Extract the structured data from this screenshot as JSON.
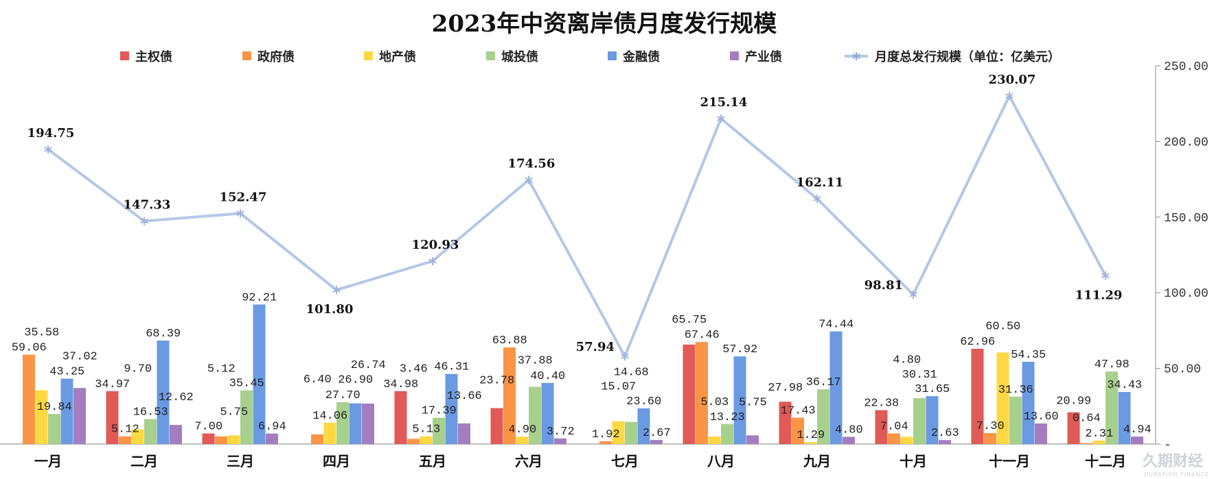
{
  "chart_data": {
    "type": "bar+line",
    "title": "2023年中资离岸债月度发行规模",
    "categories": [
      "一月",
      "二月",
      "三月",
      "四月",
      "五月",
      "六月",
      "七月",
      "八月",
      "九月",
      "十月",
      "十一月",
      "十二月"
    ],
    "series": [
      {
        "name": "主权债",
        "type": "bar",
        "color": "#E05A56",
        "values": [
          null,
          34.97,
          7.0,
          null,
          34.98,
          23.78,
          null,
          65.75,
          27.98,
          22.38,
          62.96,
          20.99
        ]
      },
      {
        "name": "政府债",
        "type": "bar",
        "color": "#FA9546",
        "values": [
          59.06,
          5.12,
          5.12,
          6.4,
          3.46,
          63.88,
          1.92,
          67.46,
          17.43,
          7.04,
          7.3,
          0.64
        ]
      },
      {
        "name": "地产债",
        "type": "bar",
        "color": "#FDD843",
        "values": [
          35.58,
          9.7,
          5.75,
          14.06,
          5.13,
          4.9,
          15.07,
          5.03,
          1.29,
          4.8,
          60.5,
          2.31
        ]
      },
      {
        "name": "城投债",
        "type": "bar",
        "color": "#A8D08D",
        "values": [
          19.84,
          16.53,
          35.45,
          27.7,
          17.39,
          37.88,
          14.68,
          13.23,
          36.17,
          30.31,
          31.36,
          47.98
        ]
      },
      {
        "name": "金融债",
        "type": "bar",
        "color": "#6A9AE2",
        "values": [
          43.25,
          68.39,
          92.21,
          26.9,
          46.31,
          40.4,
          23.6,
          57.92,
          74.44,
          31.65,
          54.35,
          34.43
        ]
      },
      {
        "name": "产业债",
        "type": "bar",
        "color": "#A47DC0",
        "values": [
          37.02,
          12.62,
          6.94,
          26.74,
          13.66,
          3.72,
          2.67,
          5.75,
          4.8,
          2.63,
          13.6,
          4.94
        ]
      },
      {
        "name": "月度总发行规模（单位：亿美元）",
        "type": "line",
        "color": "#B4C7E7",
        "marker": "star",
        "values": [
          194.75,
          147.33,
          152.47,
          101.8,
          120.93,
          174.56,
          57.94,
          215.14,
          162.11,
          98.81,
          230.07,
          111.29
        ]
      }
    ],
    "y_axis": {
      "position": "right",
      "range": [
        0,
        250
      ],
      "ticks": [
        "-",
        "50.00",
        "100.00",
        "150.00",
        "200.00",
        "250.00"
      ]
    },
    "legend": "top",
    "grid": false
  },
  "watermark": {
    "logo_text": "久期财经",
    "logo_subtext": "DURATION FINANCE"
  }
}
